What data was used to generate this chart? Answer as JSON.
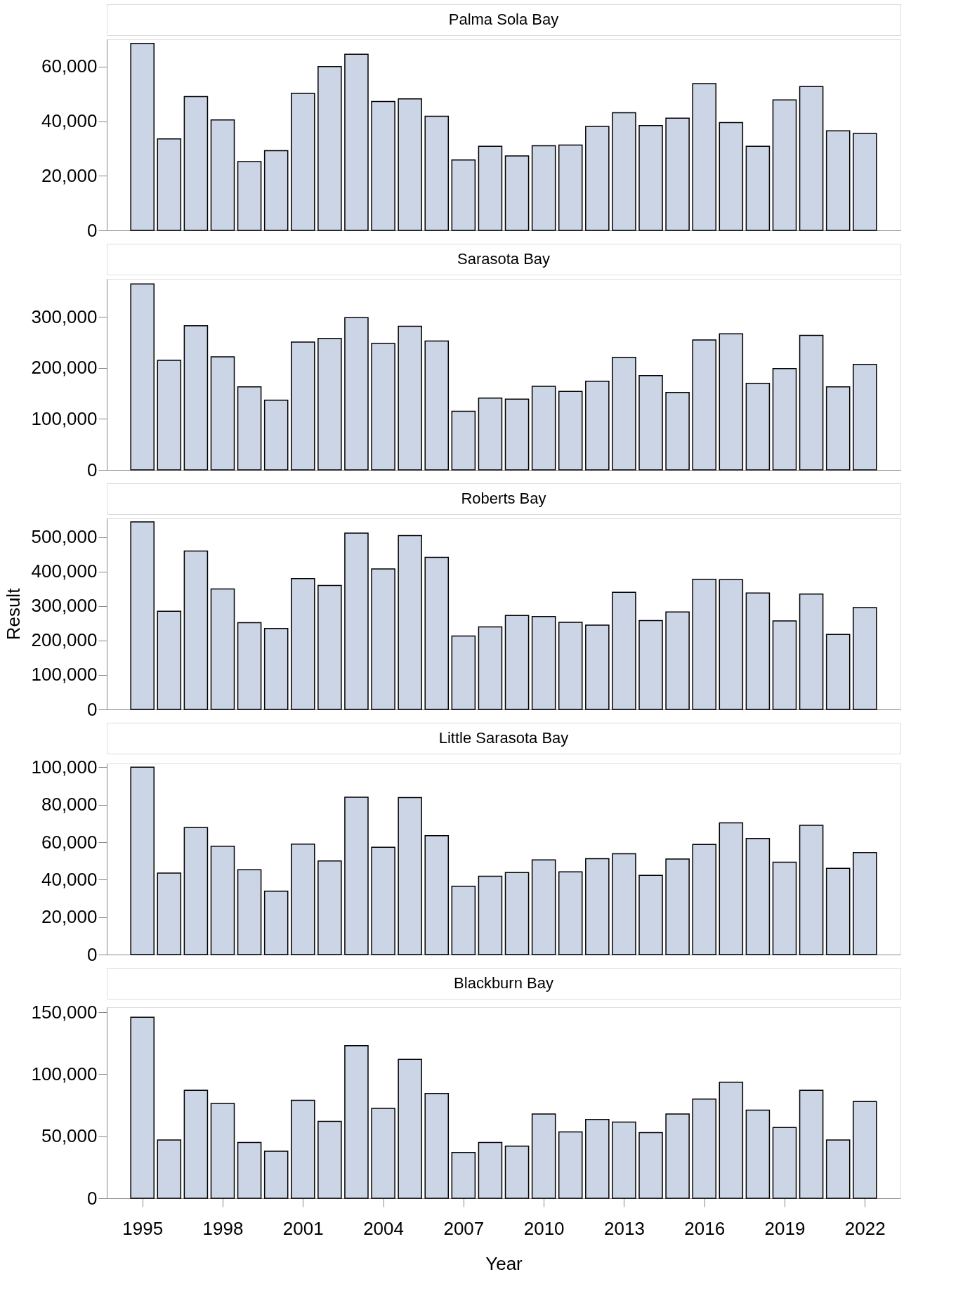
{
  "chart_data": [
    {
      "type": "bar",
      "title": "Palma Sola Bay",
      "color": "#cbd5e6",
      "grid": false,
      "tick_labels": "y",
      "x": [
        1995,
        1996,
        1997,
        1998,
        1999,
        2000,
        2001,
        2002,
        2003,
        2004,
        2005,
        2006,
        2007,
        2008,
        2009,
        2010,
        2011,
        2012,
        2013,
        2014,
        2015,
        2016,
        2017,
        2018,
        2019,
        2020,
        2021,
        2022
      ],
      "values": [
        68500,
        33500,
        49000,
        40500,
        25200,
        29200,
        50200,
        60000,
        64500,
        47200,
        48200,
        41800,
        25800,
        30800,
        27300,
        31000,
        31300,
        38100,
        43100,
        38400,
        41100,
        53800,
        39500,
        30800,
        47800,
        52700,
        36500,
        35500
      ],
      "xlim": [
        1993.8,
        2023.2
      ],
      "ylim": [
        0,
        70000
      ],
      "yticks": [
        0,
        {
          "value": 20000,
          "label": "20,000"
        },
        {
          "value": 40000,
          "label": "40,000"
        },
        {
          "value": 60000,
          "label": "60,000"
        }
      ]
    },
    {
      "type": "bar",
      "title": "Sarasota Bay",
      "color": "#cbd5e6",
      "grid": false,
      "tick_labels": "y",
      "x": [
        1995,
        1996,
        1997,
        1998,
        1999,
        2000,
        2001,
        2002,
        2003,
        2004,
        2005,
        2006,
        2007,
        2008,
        2009,
        2010,
        2011,
        2012,
        2013,
        2014,
        2015,
        2016,
        2017,
        2018,
        2019,
        2020,
        2021,
        2022
      ],
      "values": [
        365000,
        215000,
        283000,
        222000,
        163000,
        137000,
        251000,
        258000,
        299000,
        248000,
        282000,
        253000,
        115000,
        141000,
        139000,
        164000,
        154000,
        174000,
        221000,
        185000,
        152000,
        255000,
        267000,
        170000,
        199000,
        264000,
        163000,
        207000
      ],
      "xlim": [
        1993.8,
        2023.2
      ],
      "ylim": [
        0,
        375000
      ],
      "yticks": [
        0,
        {
          "value": 100000,
          "label": "100,000"
        },
        {
          "value": 200000,
          "label": "200,000"
        },
        {
          "value": 300000,
          "label": "300,000"
        }
      ]
    },
    {
      "type": "bar",
      "title": "Roberts Bay",
      "ylabel": "Result",
      "color": "#cbd5e6",
      "grid": false,
      "tick_labels": "y",
      "x": [
        1995,
        1996,
        1997,
        1998,
        1999,
        2000,
        2001,
        2002,
        2003,
        2004,
        2005,
        2006,
        2007,
        2008,
        2009,
        2010,
        2011,
        2012,
        2013,
        2014,
        2015,
        2016,
        2017,
        2018,
        2019,
        2020,
        2021,
        2022
      ],
      "values": [
        545000,
        285000,
        460000,
        350000,
        252000,
        235000,
        380000,
        360000,
        512000,
        408000,
        505000,
        442000,
        213000,
        240000,
        273000,
        270000,
        253000,
        245000,
        340000,
        258000,
        283000,
        378000,
        377000,
        338000,
        257000,
        335000,
        218000,
        296000
      ],
      "xlim": [
        1993.8,
        2023.2
      ],
      "ylim": [
        0,
        555000
      ],
      "yticks": [
        0,
        {
          "value": 100000,
          "label": "100,000"
        },
        {
          "value": 200000,
          "label": "200,000"
        },
        {
          "value": 300000,
          "label": "300,000"
        },
        {
          "value": 400000,
          "label": "400,000"
        },
        {
          "value": 500000,
          "label": "500,000"
        }
      ]
    },
    {
      "type": "bar",
      "title": "Little Sarasota Bay",
      "color": "#cbd5e6",
      "grid": false,
      "tick_labels": "y",
      "x": [
        1995,
        1996,
        1997,
        1998,
        1999,
        2000,
        2001,
        2002,
        2003,
        2004,
        2005,
        2006,
        2007,
        2008,
        2009,
        2010,
        2011,
        2012,
        2013,
        2014,
        2015,
        2016,
        2017,
        2018,
        2019,
        2020,
        2021,
        2022
      ],
      "values": [
        100000,
        43500,
        67800,
        57800,
        45300,
        33800,
        59000,
        50000,
        84000,
        57300,
        83800,
        63500,
        36500,
        41800,
        43800,
        50500,
        44200,
        51200,
        53800,
        42300,
        51000,
        58800,
        70300,
        62000,
        49300,
        69000,
        46000,
        54500
      ],
      "xlim": [
        1993.8,
        2023.2
      ],
      "ylim": [
        0,
        102000
      ],
      "yticks": [
        0,
        {
          "value": 20000,
          "label": "20,000"
        },
        {
          "value": 40000,
          "label": "40,000"
        },
        {
          "value": 60000,
          "label": "60,000"
        },
        {
          "value": 80000,
          "label": "80,000"
        },
        {
          "value": 100000,
          "label": "100,000"
        }
      ]
    },
    {
      "type": "bar",
      "title": "Blackburn Bay",
      "xlabel": "Year",
      "color": "#cbd5e6",
      "grid": false,
      "x": [
        1995,
        1996,
        1997,
        1998,
        1999,
        2000,
        2001,
        2002,
        2003,
        2004,
        2005,
        2006,
        2007,
        2008,
        2009,
        2010,
        2011,
        2012,
        2013,
        2014,
        2015,
        2016,
        2017,
        2018,
        2019,
        2020,
        2021,
        2022
      ],
      "values": [
        146000,
        47000,
        87000,
        76500,
        45000,
        38000,
        79000,
        62000,
        123000,
        72500,
        112000,
        84500,
        37000,
        45000,
        42000,
        68000,
        53500,
        63500,
        61500,
        53000,
        68000,
        80000,
        93500,
        71000,
        57000,
        87000,
        47000,
        78000
      ],
      "xlim": [
        1993.8,
        2023.2
      ],
      "ylim": [
        0,
        154000
      ],
      "yticks": [
        0,
        {
          "value": 50000,
          "label": "50,000"
        },
        {
          "value": 100000,
          "label": "100,000"
        },
        {
          "value": 150000,
          "label": "150,000"
        }
      ],
      "xticks": [
        1995,
        1998,
        2001,
        2004,
        2007,
        2010,
        2013,
        2016,
        2019,
        2022
      ]
    }
  ]
}
